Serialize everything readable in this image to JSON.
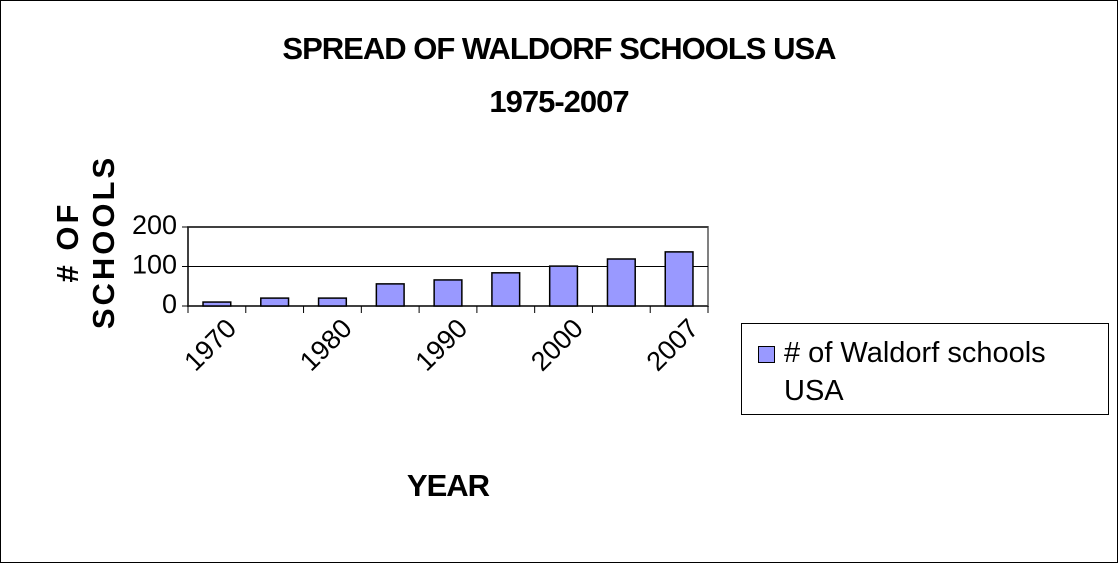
{
  "chart_data": {
    "type": "bar",
    "title": "SPREAD OF WALDORF SCHOOLS USA",
    "subtitle": "1975-2007",
    "xlabel": "YEAR",
    "ylabel": "# OF SCHOOLS",
    "categories": [
      "1970",
      null,
      "1980",
      null,
      "1990",
      null,
      "2000",
      null,
      "2007"
    ],
    "series": [
      {
        "name": "# of Waldorf schools USA",
        "color": "#9999ff",
        "values": [
          10,
          20,
          20,
          56,
          66,
          84,
          101,
          119,
          137
        ]
      }
    ],
    "ylim": [
      0,
      200
    ],
    "yticks": [
      0,
      100,
      200
    ],
    "grid": true,
    "legend": "right"
  }
}
